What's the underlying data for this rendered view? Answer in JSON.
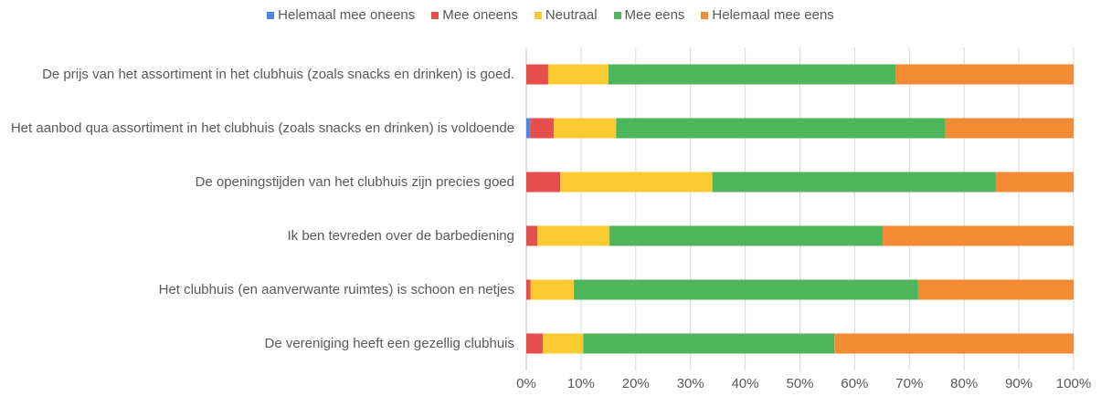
{
  "chart_data": {
    "type": "stacked_barh",
    "categories": [
      "De prijs van het assortiment in het clubhuis (zoals snacks en drinken) is goed.",
      "Het aanbod qua assortiment in het clubhuis (zoals snacks en drinken) is voldoende",
      "De openingstijden van het clubhuis zijn precies goed",
      "Ik ben tevreden over de barbediening",
      "Het clubhuis (en aanverwante ruimtes) is schoon en netjes",
      "De vereniging heeft een gezellig clubhuis"
    ],
    "series": [
      {
        "name": "Helemaal mee oneens",
        "color": "#4f86e4",
        "values": [
          0,
          0.7,
          0,
          0,
          0,
          0
        ]
      },
      {
        "name": "Mee oneens",
        "color": "#e64e4e",
        "values": [
          4,
          4.3,
          6.2,
          2,
          0.8,
          3
        ]
      },
      {
        "name": "Neutraal",
        "color": "#f9cb30",
        "values": [
          11,
          11.4,
          27.8,
          13.2,
          7.9,
          7.4
        ]
      },
      {
        "name": "Mee eens",
        "color": "#4db65a",
        "values": [
          52.5,
          60.2,
          51.8,
          49.9,
          62.9,
          45.9
        ]
      },
      {
        "name": "Helemaal mee eens",
        "color": "#f28b33",
        "values": [
          32.5,
          23.4,
          14.2,
          34.9,
          28.4,
          43.7
        ]
      }
    ],
    "xlim": [
      0,
      100
    ],
    "xticks": [
      {
        "value": 0,
        "label": "0%"
      },
      {
        "value": 10,
        "label": "10%"
      },
      {
        "value": 20,
        "label": "20%"
      },
      {
        "value": 30,
        "label": "30%"
      },
      {
        "value": 40,
        "label": "40%"
      },
      {
        "value": 50,
        "label": "50%"
      },
      {
        "value": 60,
        "label": "60%"
      },
      {
        "value": 70,
        "label": "70%"
      },
      {
        "value": 80,
        "label": "80%"
      },
      {
        "value": 90,
        "label": "90%"
      },
      {
        "value": 100,
        "label": "100%"
      }
    ],
    "grid": true,
    "legend": "top"
  }
}
